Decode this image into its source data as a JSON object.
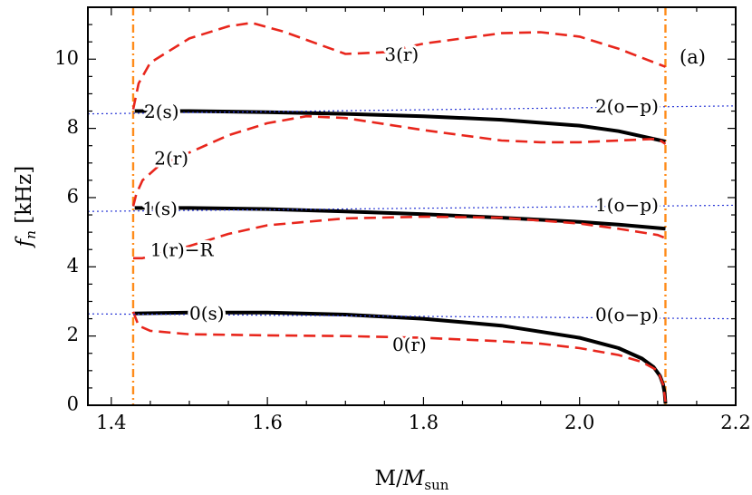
{
  "chart_data": {
    "type": "line",
    "panel_label": "(a)",
    "xlabel": {
      "main": "M/",
      "italic": "M",
      "sub": "sun"
    },
    "ylabel": {
      "italic": "f",
      "sub": "n",
      "rest": " [kHz]"
    },
    "xlim": [
      1.37,
      2.2
    ],
    "ylim": [
      0,
      11.5
    ],
    "xticks": [
      1.4,
      1.6,
      1.8,
      2.0,
      2.2
    ],
    "xtick_labels": [
      "1.4",
      "1.6",
      "1.8",
      "2.0",
      "2.2"
    ],
    "yticks": [
      0,
      2,
      4,
      6,
      8,
      10
    ],
    "ytick_labels": [
      "0",
      "2",
      "4",
      "6",
      "8",
      "10"
    ],
    "grid": false,
    "vertical_lines": [
      {
        "x": 1.428,
        "color": "#ff8c1a",
        "style": "dash-dot"
      },
      {
        "x": 2.11,
        "color": "#ff8c1a",
        "style": "dash-dot"
      }
    ],
    "series": [
      {
        "key": "s0",
        "color": "#000000",
        "style": "solid",
        "x": [
          1.43,
          1.5,
          1.6,
          1.7,
          1.8,
          1.9,
          2.0,
          2.05,
          2.08,
          2.095,
          2.103,
          2.107,
          2.109,
          2.11
        ],
        "y": [
          2.65,
          2.68,
          2.68,
          2.62,
          2.5,
          2.3,
          1.95,
          1.65,
          1.35,
          1.1,
          0.85,
          0.6,
          0.35,
          0.05
        ]
      },
      {
        "key": "r0",
        "color": "#e8261c",
        "style": "dashed",
        "x": [
          1.428,
          1.435,
          1.45,
          1.5,
          1.6,
          1.7,
          1.8,
          1.9,
          1.95,
          2.0,
          2.05,
          2.08,
          2.1,
          2.107,
          2.11
        ],
        "y": [
          2.7,
          2.3,
          2.15,
          2.05,
          2.02,
          2.0,
          1.95,
          1.85,
          1.78,
          1.65,
          1.45,
          1.25,
          1.0,
          0.6,
          0.1
        ]
      },
      {
        "key": "s1",
        "color": "#000000",
        "style": "solid",
        "x": [
          1.43,
          1.5,
          1.6,
          1.7,
          1.8,
          1.9,
          2.0,
          2.05,
          2.11
        ],
        "y": [
          5.7,
          5.7,
          5.67,
          5.6,
          5.52,
          5.42,
          5.3,
          5.22,
          5.1
        ]
      },
      {
        "key": "r1",
        "color": "#e8261c",
        "style": "dashed",
        "x": [
          1.428,
          1.44,
          1.5,
          1.55,
          1.6,
          1.7,
          1.8,
          1.9,
          2.0,
          2.05,
          2.1,
          2.108
        ],
        "y": [
          4.25,
          4.25,
          4.6,
          4.95,
          5.2,
          5.4,
          5.45,
          5.42,
          5.25,
          5.1,
          4.92,
          4.85
        ]
      },
      {
        "key": "s2",
        "color": "#000000",
        "style": "solid",
        "x": [
          1.43,
          1.5,
          1.6,
          1.7,
          1.8,
          1.9,
          2.0,
          2.05,
          2.11
        ],
        "y": [
          8.5,
          8.5,
          8.47,
          8.42,
          8.35,
          8.25,
          8.08,
          7.92,
          7.62
        ]
      },
      {
        "key": "r2",
        "color": "#e8261c",
        "style": "dashed",
        "x": [
          1.428,
          1.432,
          1.44,
          1.46,
          1.5,
          1.55,
          1.6,
          1.65,
          1.7,
          1.8,
          1.9,
          1.95,
          2.0,
          2.05,
          2.1,
          2.11
        ],
        "y": [
          5.75,
          6.1,
          6.5,
          6.9,
          7.3,
          7.8,
          8.15,
          8.35,
          8.3,
          7.95,
          7.65,
          7.6,
          7.6,
          7.65,
          7.7,
          7.55
        ]
      },
      {
        "key": "r3",
        "color": "#e8261c",
        "style": "dashed",
        "x": [
          1.428,
          1.435,
          1.45,
          1.5,
          1.55,
          1.58,
          1.62,
          1.7,
          1.75,
          1.8,
          1.9,
          1.95,
          2.0,
          2.05,
          2.11
        ],
        "y": [
          8.55,
          9.3,
          9.9,
          10.6,
          10.95,
          11.05,
          10.8,
          10.15,
          10.2,
          10.45,
          10.75,
          10.78,
          10.65,
          10.3,
          9.78
        ]
      },
      {
        "key": "op0",
        "color": "#2a38d6",
        "style": "dotted",
        "x": [
          1.37,
          2.2
        ],
        "y": [
          2.64,
          2.5
        ]
      },
      {
        "key": "op1",
        "color": "#2a38d6",
        "style": "dotted",
        "x": [
          1.37,
          2.2
        ],
        "y": [
          5.6,
          5.78
        ]
      },
      {
        "key": "op2",
        "color": "#2a38d6",
        "style": "dotted",
        "x": [
          1.37,
          2.2
        ],
        "y": [
          8.42,
          8.65
        ]
      }
    ],
    "annotations": [
      {
        "text": "0(s)",
        "x": 1.5,
        "y": 2.62
      },
      {
        "text": "0(r)",
        "x": 1.76,
        "y": 1.72
      },
      {
        "text": "0(o−p)",
        "x": 2.02,
        "y": 2.58
      },
      {
        "text": "1(s)",
        "x": 1.44,
        "y": 5.65
      },
      {
        "text": "1(r)−R",
        "x": 1.45,
        "y": 4.45
      },
      {
        "text": "1(o−p)",
        "x": 2.02,
        "y": 5.75
      },
      {
        "text": "2(s)",
        "x": 1.442,
        "y": 8.45
      },
      {
        "text": "2(r)",
        "x": 1.455,
        "y": 7.1
      },
      {
        "text": "2(o−p)",
        "x": 2.02,
        "y": 8.6
      },
      {
        "text": "3(r)",
        "x": 1.75,
        "y": 10.1
      }
    ]
  }
}
